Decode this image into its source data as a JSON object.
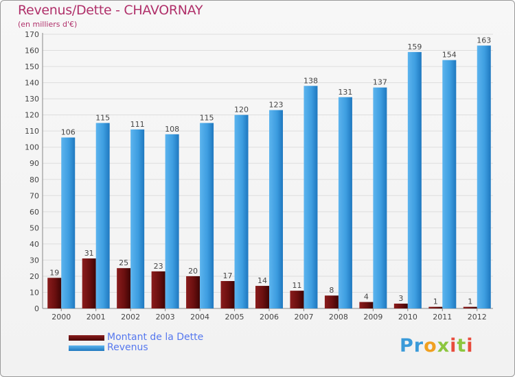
{
  "header": {
    "title": "Revenus/Dette - CHAVORNAY",
    "subtitle": "(en milliers d'€)"
  },
  "chart_data": {
    "type": "bar",
    "categories": [
      "2000",
      "2001",
      "2002",
      "2003",
      "2004",
      "2005",
      "2006",
      "2007",
      "2008",
      "2009",
      "2010",
      "2011",
      "2012"
    ],
    "series": [
      {
        "name": "Montant de la Dette",
        "color": "#7a1515",
        "values": [
          19,
          31,
          25,
          23,
          20,
          17,
          14,
          11,
          8,
          4,
          3,
          1,
          1
        ]
      },
      {
        "name": "Revenus",
        "color": "#3d9de0",
        "values": [
          106,
          115,
          111,
          108,
          115,
          120,
          123,
          138,
          131,
          137,
          159,
          154,
          163
        ]
      }
    ],
    "yticks": [
      0,
      10,
      20,
      30,
      40,
      50,
      60,
      70,
      80,
      90,
      100,
      110,
      120,
      130,
      140,
      150,
      160,
      170
    ],
    "ylim": [
      0,
      170
    ],
    "grid": true,
    "legend_position": "bottom-left"
  },
  "logo": {
    "text": "Proxiti"
  },
  "colors": {
    "title": "#b0306a",
    "legend_text": "#5577ee",
    "axis_text": "#444444"
  }
}
